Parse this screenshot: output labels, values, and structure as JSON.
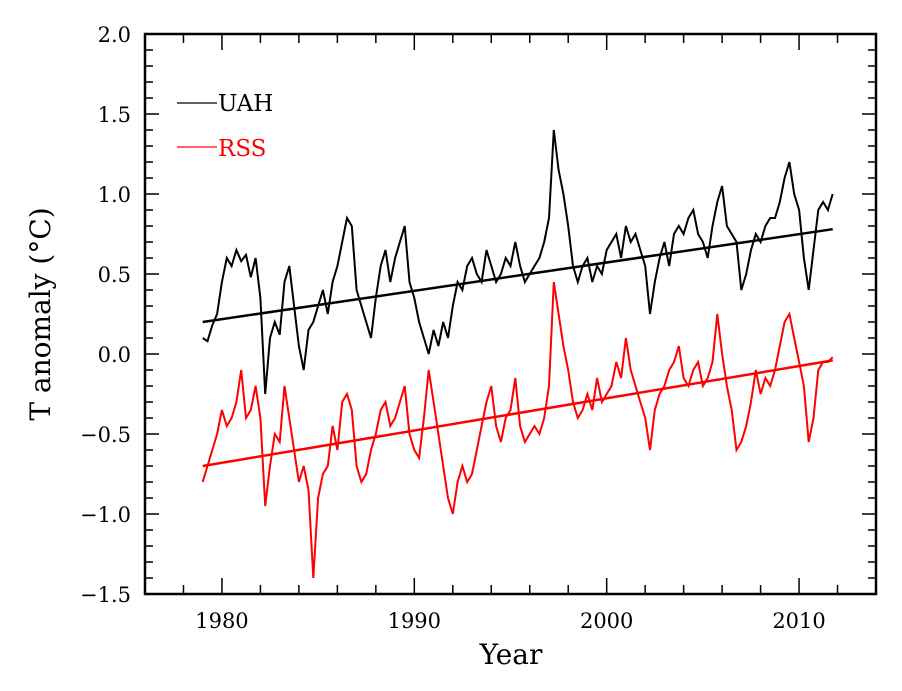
{
  "chart_data": {
    "type": "line",
    "title": "",
    "xlabel": "Year",
    "ylabel": "T anomaly (°C)",
    "xlim": [
      1976,
      2014
    ],
    "ylim": [
      -1.5,
      2.0
    ],
    "x_ticks": [
      1980,
      1990,
      2000,
      2010
    ],
    "x_tick_labels": [
      "1980",
      "1990",
      "2000",
      "2010"
    ],
    "y_ticks": [
      -1.5,
      -1.0,
      -0.5,
      0.0,
      0.5,
      1.0,
      1.5,
      2.0
    ],
    "y_tick_labels": [
      "−1.5",
      "−1.0",
      "−0.5",
      "0.0",
      "0.5",
      "1.0",
      "1.5",
      "2.0"
    ],
    "grid": false,
    "legend_position": "top-left",
    "x_start": 1979.0,
    "x_step": 0.25,
    "series": [
      {
        "name": "UAH",
        "color": "#000000",
        "values": [
          0.1,
          0.08,
          0.18,
          0.25,
          0.45,
          0.6,
          0.55,
          0.65,
          0.58,
          0.62,
          0.48,
          0.6,
          0.35,
          -0.25,
          0.1,
          0.2,
          0.12,
          0.45,
          0.55,
          0.3,
          0.05,
          -0.1,
          0.15,
          0.2,
          0.3,
          0.4,
          0.25,
          0.45,
          0.55,
          0.7,
          0.85,
          0.8,
          0.4,
          0.3,
          0.2,
          0.1,
          0.35,
          0.55,
          0.65,
          0.45,
          0.6,
          0.7,
          0.8,
          0.45,
          0.35,
          0.2,
          0.1,
          0.0,
          0.15,
          0.05,
          0.2,
          0.1,
          0.3,
          0.45,
          0.4,
          0.55,
          0.6,
          0.5,
          0.45,
          0.65,
          0.55,
          0.45,
          0.5,
          0.6,
          0.55,
          0.7,
          0.55,
          0.45,
          0.5,
          0.55,
          0.6,
          0.7,
          0.85,
          1.4,
          1.15,
          1.0,
          0.8,
          0.55,
          0.45,
          0.55,
          0.6,
          0.45,
          0.55,
          0.5,
          0.65,
          0.7,
          0.75,
          0.6,
          0.8,
          0.7,
          0.75,
          0.65,
          0.55,
          0.25,
          0.45,
          0.6,
          0.7,
          0.55,
          0.75,
          0.8,
          0.75,
          0.85,
          0.9,
          0.75,
          0.7,
          0.6,
          0.8,
          0.95,
          1.05,
          0.8,
          0.75,
          0.7,
          0.4,
          0.5,
          0.65,
          0.75,
          0.7,
          0.8,
          0.85,
          0.85,
          0.95,
          1.1,
          1.2,
          1.0,
          0.9,
          0.6,
          0.4,
          0.65,
          0.9,
          0.95,
          0.9,
          1.0
        ]
      },
      {
        "name": "RSS",
        "color": "#ff0000",
        "values": [
          -0.8,
          -0.7,
          -0.6,
          -0.5,
          -0.35,
          -0.45,
          -0.4,
          -0.3,
          -0.1,
          -0.4,
          -0.35,
          -0.2,
          -0.4,
          -0.95,
          -0.7,
          -0.5,
          -0.55,
          -0.2,
          -0.4,
          -0.6,
          -0.8,
          -0.7,
          -0.85,
          -1.4,
          -0.9,
          -0.75,
          -0.7,
          -0.45,
          -0.6,
          -0.3,
          -0.25,
          -0.35,
          -0.7,
          -0.8,
          -0.75,
          -0.6,
          -0.5,
          -0.35,
          -0.3,
          -0.45,
          -0.4,
          -0.3,
          -0.2,
          -0.5,
          -0.6,
          -0.65,
          -0.4,
          -0.1,
          -0.3,
          -0.5,
          -0.7,
          -0.9,
          -1.0,
          -0.8,
          -0.7,
          -0.8,
          -0.75,
          -0.6,
          -0.45,
          -0.3,
          -0.2,
          -0.45,
          -0.55,
          -0.4,
          -0.35,
          -0.15,
          -0.45,
          -0.55,
          -0.5,
          -0.45,
          -0.5,
          -0.4,
          -0.2,
          0.45,
          0.25,
          0.05,
          -0.1,
          -0.3,
          -0.4,
          -0.35,
          -0.25,
          -0.35,
          -0.15,
          -0.3,
          -0.25,
          -0.2,
          -0.05,
          -0.15,
          0.1,
          -0.1,
          -0.2,
          -0.3,
          -0.4,
          -0.6,
          -0.35,
          -0.25,
          -0.2,
          -0.1,
          -0.05,
          0.05,
          -0.15,
          -0.2,
          -0.1,
          -0.05,
          -0.2,
          -0.15,
          -0.05,
          0.25,
          0.0,
          -0.2,
          -0.35,
          -0.6,
          -0.55,
          -0.45,
          -0.3,
          -0.1,
          -0.25,
          -0.15,
          -0.2,
          -0.1,
          0.05,
          0.2,
          0.25,
          0.1,
          -0.05,
          -0.2,
          -0.55,
          -0.4,
          -0.1,
          -0.05,
          -0.05,
          -0.02
        ]
      }
    ],
    "trend_lines": [
      {
        "name": "UAH trend",
        "color": "#000000",
        "x": [
          1979.0,
          2011.75
        ],
        "y": [
          0.2,
          0.78
        ]
      },
      {
        "name": "RSS trend",
        "color": "#ff0000",
        "x": [
          1979.0,
          2011.75
        ],
        "y": [
          -0.7,
          -0.04
        ]
      }
    ]
  }
}
